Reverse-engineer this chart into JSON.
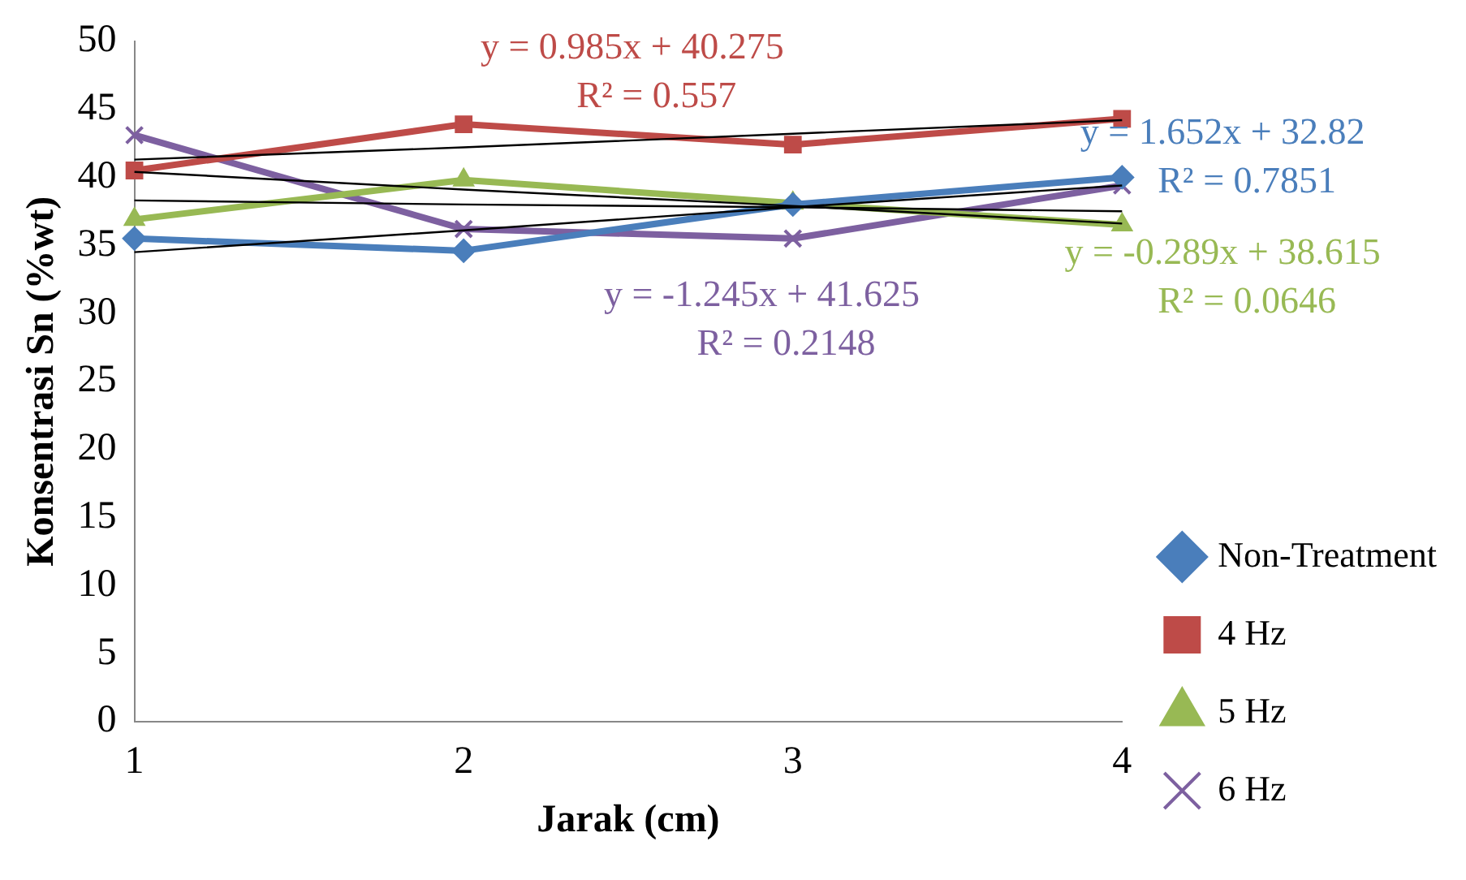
{
  "chart_data": {
    "type": "line",
    "xlabel": "Jarak (cm)",
    "ylabel": "Konsentrasi Sn (%wt)",
    "categories": [
      "1",
      "2",
      "3",
      "4"
    ],
    "ylim": [
      0,
      50
    ],
    "yticks": [
      0,
      5,
      10,
      15,
      20,
      25,
      30,
      35,
      40,
      45,
      50
    ],
    "grid": false,
    "legend": "right",
    "line_style": "solid",
    "series": [
      {
        "name": "Non-Treatment",
        "color": "#4a7ebb",
        "marker": "diamond",
        "values": [
          35.5,
          34.6,
          38.0,
          40.0
        ]
      },
      {
        "name": "4 Hz",
        "color": "#be4b48",
        "marker": "square",
        "values": [
          40.5,
          43.9,
          42.4,
          44.3
        ]
      },
      {
        "name": "5 Hz",
        "color": "#98b954",
        "marker": "triangle",
        "values": [
          36.9,
          39.8,
          38.1,
          36.5
        ]
      },
      {
        "name": "6 Hz",
        "color": "#7d60a0",
        "marker": "cross",
        "values": [
          43.1,
          36.2,
          35.5,
          39.4
        ]
      },
      {
        "color": "#000000",
        "marker": "none",
        "values": [
          34.5,
          36.1,
          37.8,
          39.4
        ]
      },
      {
        "color": "#000000",
        "marker": "none",
        "values": [
          41.3,
          42.2,
          43.2,
          44.2
        ]
      },
      {
        "color": "#000000",
        "marker": "none",
        "values": [
          38.3,
          38.0,
          37.8,
          37.5
        ]
      },
      {
        "color": "#000000",
        "marker": "none",
        "values": [
          40.4,
          39.1,
          37.9,
          36.6
        ]
      }
    ],
    "annotations": [
      "y = 1.652x + 32.82\nR² = 0.7851",
      "y = 0.985x + 40.275\nR² = 0.557",
      "y = -0.289x + 38.615\nR² = 0.0646",
      "y = -1.245x + 41.625\nR² = 0.2148"
    ]
  }
}
